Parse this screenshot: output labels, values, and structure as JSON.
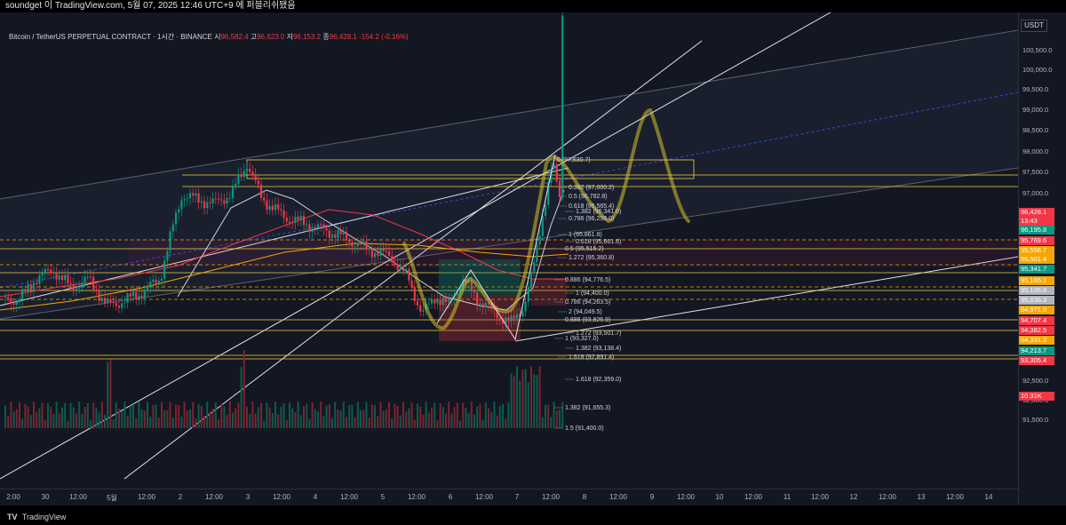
{
  "topbar": {
    "text": "soundget 이 TradingView.com, 5월 07, 2025 12:46 UTC+9 에 퍼블리쉬됐음"
  },
  "header": {
    "symbol": "Bitcoin / TetherUS PERPETUAL CONTRACT · 1시간 · BINANCE",
    "open_label": "시",
    "open": "96,582.4",
    "high_label": "고",
    "high": "96,623.0",
    "low_label": "저",
    "low": "96,153.2",
    "close_label": "종",
    "close": "96,428.1",
    "change": "-154.2 (-0.16%)"
  },
  "currency": "USDT",
  "price_ticks": [
    "100,500.0",
    "100,000.0",
    "99,500.0",
    "99,000.0",
    "98,500.0",
    "98,000.0",
    "97,500.0",
    "97,000.0",
    "92,500.0",
    "92,000.0",
    "91,500.0"
  ],
  "price_labels": [
    {
      "value": "96,428.1",
      "color": "#f23645"
    },
    {
      "value": "13:43",
      "color": "#f23645"
    },
    {
      "value": "96,195.8",
      "color": "#089981"
    },
    {
      "value": "95,769.6",
      "color": "#f23645"
    },
    {
      "value": "95,556.7",
      "color": "#f7a600"
    },
    {
      "value": "95,501.4",
      "color": "#f7a600"
    },
    {
      "value": "95,341.7",
      "color": "#089981"
    },
    {
      "value": "95,165.1",
      "color": "#f7a600"
    },
    {
      "value": "95,106.8",
      "color": "#b2b5be"
    },
    {
      "value": "95,036.3",
      "color": "#b2b5be"
    },
    {
      "value": "94,971.0",
      "color": "#f7a600"
    },
    {
      "value": "94,707.4",
      "color": "#f23645"
    },
    {
      "value": "94,382.5",
      "color": "#f23645"
    },
    {
      "value": "94,331.2",
      "color": "#f7a600"
    },
    {
      "value": "94,213.7",
      "color": "#089981"
    },
    {
      "value": "93,305.4",
      "color": "#f23645"
    },
    {
      "value": "10.31K",
      "color": "#f23645"
    }
  ],
  "fib_labels": [
    "0 (97,630.7)",
    "0.382 (97,000.2)",
    "0.5 (96,782.8)",
    "0.618 (96,565.4)",
    "1.382 (96,341.0)",
    "0.786 (96,256.0)",
    "0.618 (95,661.6)",
    "1 (95,861.8)",
    "0.5 (95,515.2)",
    "1.272 (95,360.8)",
    "0.886 (94,776.5)",
    "1 (94,400.0)",
    "0.786 (94,263.5)",
    "2 (94,049.5)",
    "0.886 (93,825.9)",
    "1.272 (93,501.7)",
    "1 (93,327.0)",
    "1.382 (93,138.4)",
    "1.618 (92,891.4)",
    "1.618 (92,359.0)",
    "1.382 (91,655.3)",
    "1.5 (91,400.0)"
  ],
  "time_ticks": [
    "2:00",
    "30",
    "12:00",
    "5월",
    "12:00",
    "2",
    "12:00",
    "3",
    "12:00",
    "4",
    "12:00",
    "5",
    "12:00",
    "6",
    "12:00",
    "7",
    "12:00",
    "8",
    "12:00",
    "9",
    "12:00",
    "10",
    "12:00",
    "11",
    "12:00",
    "12",
    "12:00",
    "13",
    "12:00",
    "14"
  ],
  "footer": {
    "brand": "TradingView",
    "logo": "TV"
  },
  "colors": {
    "bg": "#131722",
    "up": "#089981",
    "down": "#f23645",
    "accent_yellow": "#f7d046",
    "orange": "#f7a600"
  }
}
